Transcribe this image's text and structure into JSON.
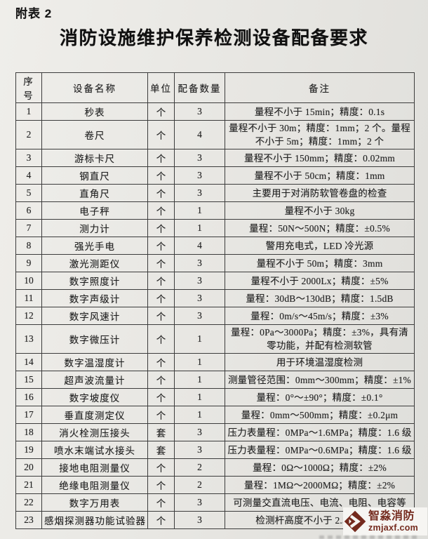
{
  "page": {
    "label": "附表 2",
    "title": "消防设施维护保养检测设备配备要求"
  },
  "table": {
    "headers": [
      "序号",
      "设备名称",
      "单位",
      "配备数量",
      "备注"
    ],
    "rows": [
      {
        "no": "1",
        "name": "秒表",
        "unit": "个",
        "qty": "3",
        "remark": "量程不小于 15min；精度：0.1s"
      },
      {
        "no": "2",
        "name": "卷尺",
        "unit": "个",
        "qty": "4",
        "remark": "量程不小于 30m；精度：1mm；2 个。量程不小于 5m；精度：1mm；2 个"
      },
      {
        "no": "3",
        "name": "游标卡尺",
        "unit": "个",
        "qty": "3",
        "remark": "量程不小于 150mm；精度：0.02mm"
      },
      {
        "no": "4",
        "name": "钢直尺",
        "unit": "个",
        "qty": "3",
        "remark": "量程不小于 50cm；精度：1mm"
      },
      {
        "no": "5",
        "name": "直角尺",
        "unit": "个",
        "qty": "3",
        "remark": "主要用于对消防软管卷盘的检查"
      },
      {
        "no": "6",
        "name": "电子秤",
        "unit": "个",
        "qty": "1",
        "remark": "量程不小于 30kg"
      },
      {
        "no": "7",
        "name": "测力计",
        "unit": "个",
        "qty": "1",
        "remark": "量程：50N～500N；精度：±0.5%"
      },
      {
        "no": "8",
        "name": "强光手电",
        "unit": "个",
        "qty": "4",
        "remark": "警用充电式，LED 冷光源"
      },
      {
        "no": "9",
        "name": "激光测距仪",
        "unit": "个",
        "qty": "3",
        "remark": "量程不小于 50m；精度：3mm"
      },
      {
        "no": "10",
        "name": "数字照度计",
        "unit": "个",
        "qty": "3",
        "remark": "量程不小于 2000Lx；精度：±5%"
      },
      {
        "no": "11",
        "name": "数字声级计",
        "unit": "个",
        "qty": "3",
        "remark": "量程：30dB～130dB；精度：1.5dB"
      },
      {
        "no": "12",
        "name": "数字风速计",
        "unit": "个",
        "qty": "3",
        "remark": "量程：0m/s～45m/s；精度：±3%"
      },
      {
        "no": "13",
        "name": "数字微压计",
        "unit": "个",
        "qty": "1",
        "remark": "量程：0Pa～3000Pa；精度：±3%，具有清零功能，并配有检测软管"
      },
      {
        "no": "14",
        "name": "数字温湿度计",
        "unit": "个",
        "qty": "1",
        "remark": "用于环境温湿度检测"
      },
      {
        "no": "15",
        "name": "超声波流量计",
        "unit": "个",
        "qty": "1",
        "remark": "测量管径范围：0mm～300mm；精度：±1%"
      },
      {
        "no": "16",
        "name": "数字坡度仪",
        "unit": "个",
        "qty": "1",
        "remark": "量程：0°～±90°；精度：±0.1°"
      },
      {
        "no": "17",
        "name": "垂直度测定仪",
        "unit": "个",
        "qty": "1",
        "remark": "量程：0mm～500mm；精度：±0.2μm"
      },
      {
        "no": "18",
        "name": "消火栓测压接头",
        "unit": "套",
        "qty": "3",
        "remark": "压力表量程：0MPa～1.6MPa；精度：1.6 级"
      },
      {
        "no": "19",
        "name": "喷水末端试水接头",
        "unit": "套",
        "qty": "3",
        "remark": "压力表量程：0MPa～0.6MPa；精度：1.6 级"
      },
      {
        "no": "20",
        "name": "接地电阻测量仪",
        "unit": "个",
        "qty": "2",
        "remark": "量程：0Ω～1000Ω；精度：±2%"
      },
      {
        "no": "21",
        "name": "绝缘电阻测量仪",
        "unit": "个",
        "qty": "2",
        "remark": "量程：1MΩ～2000MΩ；精度：±2%"
      },
      {
        "no": "22",
        "name": "数字万用表",
        "unit": "个",
        "qty": "3",
        "remark": "可测量交直流电压、电流、电阻、电容等"
      },
      {
        "no": "23",
        "name": "感烟探测器功能试验器",
        "unit": "个",
        "qty": "3",
        "remark": "检测杆高度不小于 2.5m，加配"
      }
    ]
  },
  "watermark": {
    "name": "智淼消防",
    "domain": "zmjaxf.com",
    "color": "#742a1d"
  }
}
